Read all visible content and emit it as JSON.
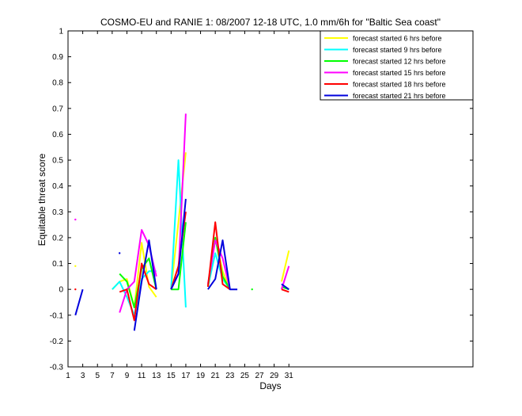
{
  "chart_data": {
    "type": "line",
    "title": "COSMO-EU and RANIE 1: 08/2007 12-18 UTC, 1.0 mm/6h for \"Baltic Sea coast\"",
    "xlabel": "Days",
    "ylabel": "Equitable threat score",
    "xlim": [
      1,
      56
    ],
    "ylim": [
      -0.3,
      1
    ],
    "xticks": [
      1,
      3,
      5,
      7,
      9,
      11,
      13,
      15,
      17,
      19,
      21,
      23,
      25,
      27,
      29,
      31
    ],
    "yticks": [
      -0.3,
      -0.2,
      -0.1,
      0,
      0.1,
      0.2,
      0.3,
      0.4,
      0.5,
      0.6,
      0.7,
      0.8,
      0.9,
      1
    ],
    "ytick_labels": [
      "-0.3",
      "-0.2",
      "-0.1",
      "0",
      "0.1",
      "0.2",
      "0.3",
      "0.4",
      "0.5",
      "0.6",
      "0.7",
      "0.8",
      "0.9",
      "1"
    ],
    "grid": false,
    "legend_position": "top-right",
    "series": [
      {
        "name": "forecast started 6 hrs before",
        "color": "#ffff00",
        "segments": [
          [
            [
              2,
              0.09
            ]
          ],
          [
            [
              7,
              0.0
            ],
            [
              8,
              0.03
            ],
            [
              9,
              0.04
            ],
            [
              10,
              -0.07
            ],
            [
              11,
              0.18
            ],
            [
              12,
              0.01
            ],
            [
              13,
              -0.03
            ]
          ],
          [
            [
              15,
              0.0
            ],
            [
              16,
              0.26
            ],
            [
              17,
              0.53
            ]
          ],
          [
            [
              20,
              0.01
            ],
            [
              21,
              0.2
            ],
            [
              22,
              0.07
            ],
            [
              23,
              0.0
            ]
          ],
          [
            [
              30,
              0.03
            ],
            [
              31,
              0.15
            ]
          ]
        ]
      },
      {
        "name": "forecast started 9 hrs before",
        "color": "#00ffff",
        "segments": [
          [
            [
              7,
              0.0
            ],
            [
              8,
              0.03
            ],
            [
              9,
              -0.03
            ],
            [
              10,
              -0.1
            ],
            [
              11,
              0.04
            ],
            [
              12,
              0.07
            ],
            [
              13,
              0.07
            ]
          ],
          [
            [
              15,
              0.0
            ],
            [
              16,
              0.5
            ],
            [
              17,
              -0.07
            ]
          ],
          [
            [
              20,
              0.01
            ],
            [
              21,
              0.14
            ],
            [
              22,
              0.04
            ],
            [
              23,
              0.0
            ]
          ],
          [
            [
              30,
              0.01
            ],
            [
              31,
              0.0
            ]
          ]
        ]
      },
      {
        "name": "forecast started 12 hrs before",
        "color": "#00ff00",
        "segments": [
          [
            [
              8,
              0.06
            ],
            [
              9,
              0.03
            ],
            [
              10,
              -0.07
            ],
            [
              11,
              0.08
            ],
            [
              12,
              0.12
            ],
            [
              13,
              0.0
            ]
          ],
          [
            [
              15,
              0.0
            ],
            [
              16,
              0.0
            ],
            [
              17,
              0.26
            ]
          ],
          [
            [
              20,
              0.01
            ],
            [
              21,
              0.2
            ],
            [
              22,
              0.05
            ],
            [
              23,
              0.0
            ]
          ],
          [
            [
              26,
              0.0
            ]
          ],
          [
            [
              30,
              0.01
            ],
            [
              31,
              0.0
            ]
          ]
        ]
      },
      {
        "name": "forecast started 15 hrs before",
        "color": "#ff00ff",
        "segments": [
          [
            [
              2,
              0.27
            ]
          ],
          [
            [
              8,
              -0.09
            ],
            [
              9,
              0.0
            ],
            [
              10,
              0.03
            ],
            [
              11,
              0.23
            ],
            [
              12,
              0.17
            ],
            [
              13,
              0.05
            ]
          ],
          [
            [
              15,
              0.0
            ],
            [
              16,
              0.06
            ],
            [
              17,
              0.68
            ]
          ],
          [
            [
              20,
              0.02
            ],
            [
              21,
              0.19
            ],
            [
              22,
              0.12
            ],
            [
              23,
              0.0
            ]
          ],
          [
            [
              30,
              0.0
            ],
            [
              31,
              0.09
            ]
          ]
        ]
      },
      {
        "name": "forecast started 18 hrs before",
        "color": "#ff0000",
        "segments": [
          [
            [
              2,
              0.0
            ]
          ],
          [
            [
              8,
              -0.01
            ],
            [
              9,
              0.0
            ],
            [
              10,
              -0.12
            ],
            [
              11,
              0.1
            ],
            [
              12,
              0.02
            ],
            [
              13,
              0.0
            ]
          ],
          [
            [
              15,
              0.0
            ],
            [
              16,
              0.09
            ],
            [
              17,
              0.3
            ]
          ],
          [
            [
              20,
              0.01
            ],
            [
              21,
              0.26
            ],
            [
              22,
              0.02
            ],
            [
              23,
              0.0
            ]
          ],
          [
            [
              30,
              0.0
            ],
            [
              31,
              -0.01
            ]
          ]
        ]
      },
      {
        "name": "forecast started 21 hrs before",
        "color": "#0000dd",
        "segments": [
          [
            [
              2,
              -0.1
            ],
            [
              3,
              0.0
            ]
          ],
          [
            [
              8,
              0.14
            ]
          ],
          [
            [
              10,
              -0.16
            ],
            [
              11,
              0.03
            ],
            [
              12,
              0.19
            ],
            [
              13,
              0.0
            ]
          ],
          [
            [
              15,
              0.0
            ],
            [
              16,
              0.06
            ],
            [
              17,
              0.35
            ]
          ],
          [
            [
              20,
              0.0
            ],
            [
              21,
              0.04
            ],
            [
              22,
              0.19
            ],
            [
              23,
              0.0
            ],
            [
              24,
              0.0
            ]
          ],
          [
            [
              30,
              0.02
            ],
            [
              31,
              0.0
            ]
          ]
        ]
      }
    ]
  }
}
